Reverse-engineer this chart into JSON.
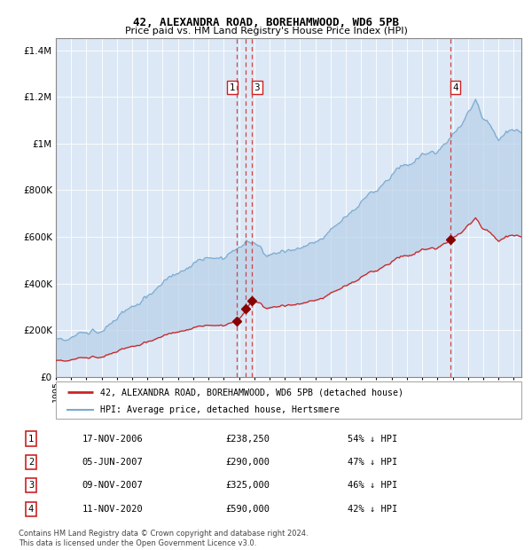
{
  "title": "42, ALEXANDRA ROAD, BOREHAMWOOD, WD6 5PB",
  "subtitle": "Price paid vs. HM Land Registry's House Price Index (HPI)",
  "legend_line1": "42, ALEXANDRA ROAD, BOREHAMWOOD, WD6 5PB (detached house)",
  "legend_line2": "HPI: Average price, detached house, Hertsmere",
  "footer1": "Contains HM Land Registry data © Crown copyright and database right 2024.",
  "footer2": "This data is licensed under the Open Government Licence v3.0.",
  "transactions": [
    {
      "num": 1,
      "date": "17-NOV-2006",
      "price": 238250,
      "pct": "54%",
      "year": 2006.88
    },
    {
      "num": 2,
      "date": "05-JUN-2007",
      "price": 290000,
      "pct": "47%",
      "year": 2007.43
    },
    {
      "num": 3,
      "date": "09-NOV-2007",
      "price": 325000,
      "pct": "46%",
      "year": 2007.86
    },
    {
      "num": 4,
      "date": "11-NOV-2020",
      "price": 590000,
      "pct": "42%",
      "year": 2020.86
    }
  ],
  "hpi_color": "#7aaad0",
  "sale_color": "#cc2222",
  "background_fill": "#dce8f5",
  "ylim": [
    0,
    1450000
  ],
  "xlim_start": 1995.0,
  "xlim_end": 2025.5,
  "y_ticks": [
    0,
    200000,
    400000,
    600000,
    800000,
    1000000,
    1200000,
    1400000
  ],
  "y_labels": [
    "£0",
    "£200K",
    "£400K",
    "£600K",
    "£800K",
    "£1M",
    "£1.2M",
    "£1.4M"
  ]
}
